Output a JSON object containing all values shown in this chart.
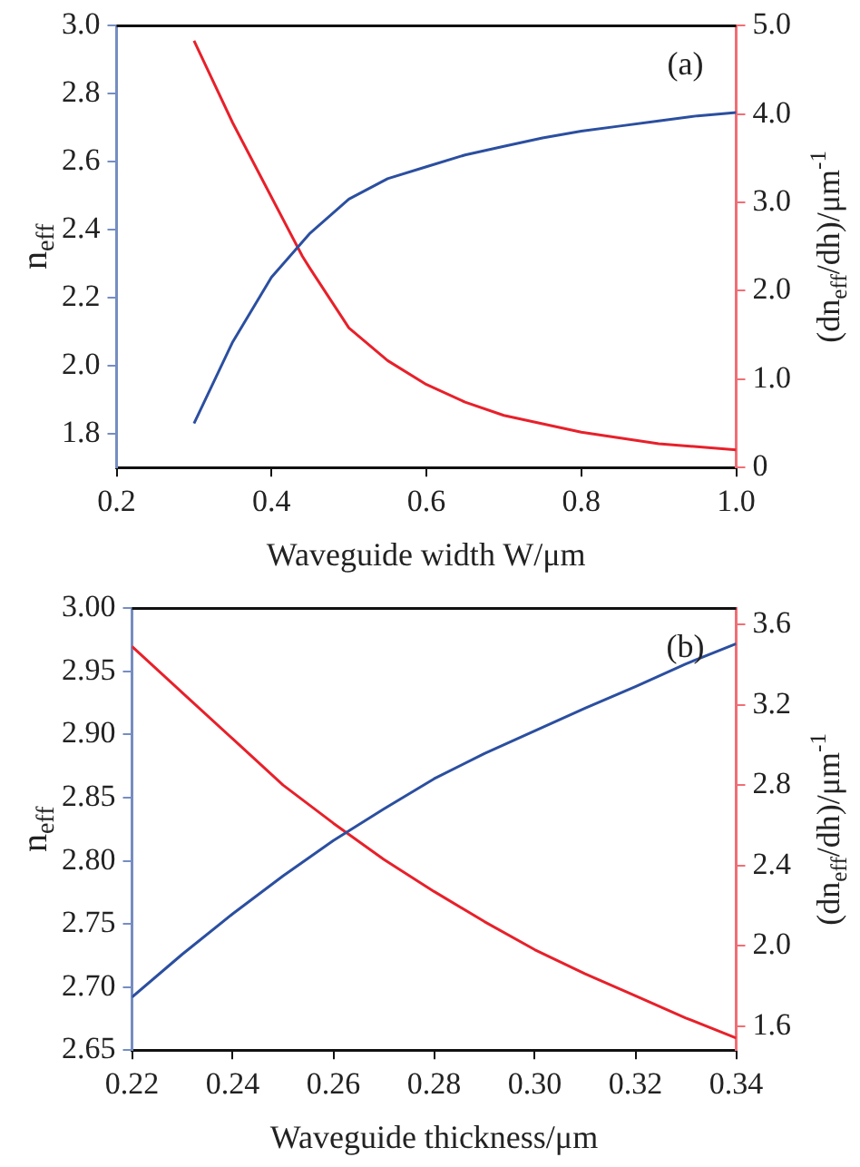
{
  "chart_data": [
    {
      "type": "line",
      "xlabel": "Waveguide width W/μm",
      "ylabel": "n$_{eff}$",
      "y2label": "(dn$_{eff}$/dh)/μm$^{-1}$",
      "annotations": [
        "(a)"
      ],
      "xlim": [
        0.2,
        1.0
      ],
      "xticks": [
        0.2,
        0.4,
        0.6,
        0.8,
        {
          "value": 1,
          "label": "1.0"
        }
      ],
      "ylim": [
        1.7,
        3.0
      ],
      "yticks": [
        1.8,
        {
          "value": 2,
          "label": "2.0"
        },
        2.2,
        2.4,
        2.6,
        2.8,
        {
          "value": 3,
          "label": "3.0"
        }
      ],
      "y2lim": [
        0,
        5
      ],
      "y2ticks": [
        0,
        {
          "value": 1,
          "label": "1.0"
        },
        {
          "value": 2,
          "label": "2.0"
        },
        {
          "value": 3,
          "label": "3.0"
        },
        {
          "value": 4,
          "label": "4.0"
        },
        {
          "value": 5,
          "label": "5.0"
        }
      ],
      "grid": false,
      "legend": false,
      "marker": "none",
      "line_style": "solid",
      "series": [
        {
          "color": "#2b4fa0",
          "x": [
            0.3,
            0.35,
            0.4,
            0.45,
            0.5,
            0.55,
            0.6,
            0.65,
            0.7,
            0.75,
            0.8,
            0.85,
            0.9,
            0.95,
            1.0
          ],
          "values": [
            1.83,
            2.07,
            2.26,
            2.39,
            2.49,
            2.55,
            2.585,
            2.62,
            2.645,
            2.67,
            2.69,
            2.705,
            2.72,
            2.735,
            2.745
          ]
        },
        {
          "color": "#e8202a",
          "axis": "y2",
          "x": [
            0.3,
            0.35,
            0.4,
            0.44,
            0.45,
            0.5,
            0.55,
            0.6,
            0.65,
            0.7,
            0.8,
            0.9,
            1.0
          ],
          "values": [
            4.83,
            3.9,
            3.06,
            2.39,
            2.25,
            1.58,
            1.21,
            0.94,
            0.74,
            0.59,
            0.4,
            0.27,
            0.2
          ]
        }
      ]
    },
    {
      "type": "line",
      "xlabel": "Waveguide thickness/μm",
      "ylabel": "n$_{eff}$",
      "y2label": "(dn$_{eff}$/dh)/μm$^{-1}$",
      "annotations": [
        "(b)"
      ],
      "xlim": [
        0.22,
        0.34
      ],
      "xticks": [
        0.22,
        0.24,
        0.26,
        0.28,
        {
          "value": 0.3,
          "label": "0.30"
        },
        0.32,
        0.34
      ],
      "ylim": [
        2.65,
        3.0
      ],
      "yticks": [
        2.65,
        {
          "value": 2.7,
          "label": "2.70"
        },
        2.75,
        {
          "value": 2.8,
          "label": "2.80"
        },
        2.85,
        {
          "value": 2.9,
          "label": "2.90"
        },
        2.95,
        {
          "value": 3,
          "label": "3.00"
        }
      ],
      "y2lim": [
        1.48,
        3.68
      ],
      "y2ticks": [
        1.6,
        {
          "value": 2,
          "label": "2.0"
        },
        2.4,
        2.8,
        3.2,
        3.6
      ],
      "grid": false,
      "legend": false,
      "marker": "none",
      "line_style": "solid",
      "series": [
        {
          "color": "#2b4fa0",
          "x": [
            0.22,
            0.23,
            0.24,
            0.25,
            0.26,
            0.27,
            0.28,
            0.29,
            0.3,
            0.31,
            0.32,
            0.33,
            0.34
          ],
          "values": [
            2.692,
            2.726,
            2.758,
            2.788,
            2.816,
            2.841,
            2.865,
            2.885,
            2.903,
            2.921,
            2.938,
            2.956,
            2.972
          ]
        },
        {
          "color": "#e8202a",
          "axis": "y2",
          "x": [
            0.22,
            0.23,
            0.24,
            0.25,
            0.26,
            0.27,
            0.28,
            0.29,
            0.3,
            0.31,
            0.32,
            0.33,
            0.34
          ],
          "values": [
            3.49,
            3.26,
            3.03,
            2.8,
            2.61,
            2.43,
            2.27,
            2.12,
            1.98,
            1.86,
            1.75,
            1.64,
            1.54
          ]
        }
      ]
    }
  ]
}
